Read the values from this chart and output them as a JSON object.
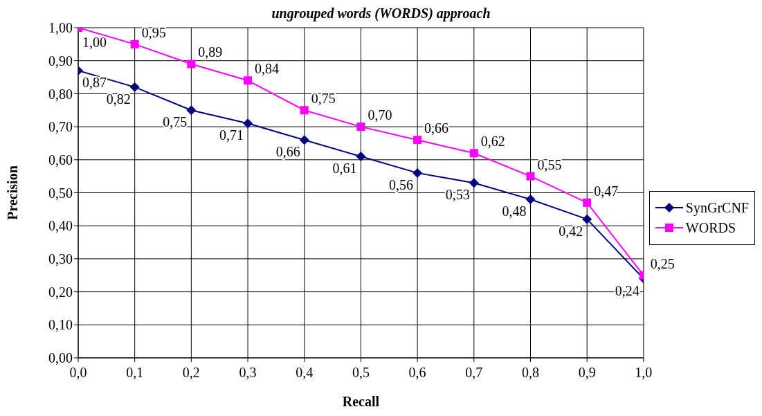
{
  "chart_data": {
    "type": "line",
    "title": "ungrouped words (WORDS) approach",
    "xlabel": "Recall",
    "ylabel": "Precision",
    "x": [
      0,
      0.1,
      0.2,
      0.3,
      0.4,
      0.5,
      0.6,
      0.7,
      0.8,
      0.9,
      1
    ],
    "series": [
      {
        "name": "SynGrCNF",
        "color": "#000080",
        "marker": "diamond",
        "values": [
          0.87,
          0.82,
          0.75,
          0.71,
          0.66,
          0.61,
          0.56,
          0.53,
          0.48,
          0.42,
          0.24
        ],
        "value_labels": [
          "0,87",
          "0,82",
          "0,75",
          "0,71",
          "0,66",
          "0,61",
          "0,56",
          "0,53",
          "0,48",
          "0,42",
          "0,24"
        ]
      },
      {
        "name": "WORDS",
        "color": "#ff00ff",
        "marker": "square",
        "values": [
          1.0,
          0.95,
          0.89,
          0.84,
          0.75,
          0.7,
          0.66,
          0.62,
          0.55,
          0.47,
          0.25
        ],
        "value_labels": [
          "1,00",
          "0,95",
          "0,89",
          "0,84",
          "0,75",
          "0,70",
          "0,66",
          "0,62",
          "0,55",
          "0,47",
          "0,25"
        ]
      }
    ],
    "xlim": [
      0,
      1
    ],
    "xticks": [
      {
        "value": 0,
        "label": "0,0"
      },
      {
        "value": 0.1,
        "label": "0,1"
      },
      {
        "value": 0.2,
        "label": "0,2"
      },
      {
        "value": 0.3,
        "label": "0,3"
      },
      {
        "value": 0.4,
        "label": "0,4"
      },
      {
        "value": 0.5,
        "label": "0,5"
      },
      {
        "value": 0.6,
        "label": "0,6"
      },
      {
        "value": 0.7,
        "label": "0,7"
      },
      {
        "value": 0.8,
        "label": "0,8"
      },
      {
        "value": 0.9,
        "label": "0,9"
      },
      {
        "value": 1,
        "label": "1,0"
      }
    ],
    "ylim": [
      0,
      1
    ],
    "yticks": [
      {
        "value": 0,
        "label": "0,00"
      },
      {
        "value": 0.1,
        "label": "0,10"
      },
      {
        "value": 0.2,
        "label": "0,20"
      },
      {
        "value": 0.3,
        "label": "0,30"
      },
      {
        "value": 0.4,
        "label": "0,40"
      },
      {
        "value": 0.5,
        "label": "0,50"
      },
      {
        "value": 0.6,
        "label": "0,60"
      },
      {
        "value": 0.7,
        "label": "0,70"
      },
      {
        "value": 0.8,
        "label": "0,80"
      },
      {
        "value": 0.9,
        "label": "0,90"
      },
      {
        "value": 1,
        "label": "1,00"
      }
    ],
    "grid": true,
    "legend": "right",
    "line_style": "solid"
  }
}
